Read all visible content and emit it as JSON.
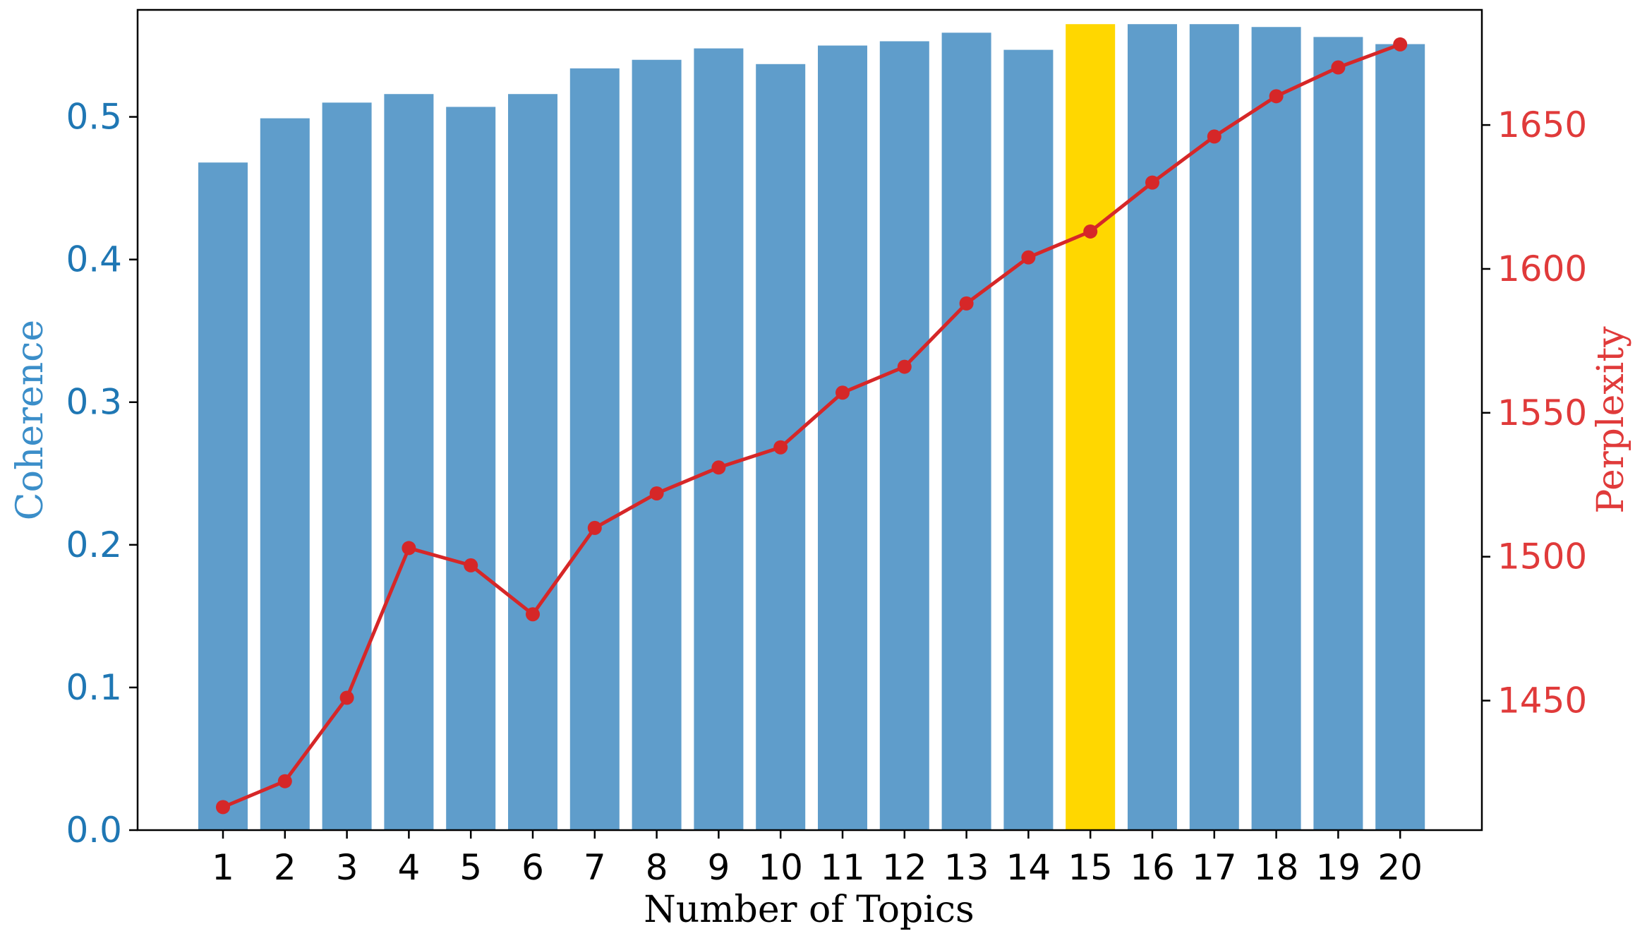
{
  "chart_data": {
    "type": "bar",
    "title": "",
    "xlabel": "Number of Topics",
    "categories": [
      "1",
      "2",
      "3",
      "4",
      "5",
      "6",
      "7",
      "8",
      "9",
      "10",
      "11",
      "12",
      "13",
      "14",
      "15",
      "16",
      "17",
      "18",
      "19",
      "20"
    ],
    "highlighted_category": "15",
    "series": [
      {
        "name": "Coherence",
        "type": "bar",
        "axis": "left",
        "values": [
          0.468,
          0.499,
          0.51,
          0.516,
          0.507,
          0.516,
          0.534,
          0.54,
          0.548,
          0.537,
          0.55,
          0.553,
          0.559,
          0.547,
          0.565,
          0.565,
          0.565,
          0.563,
          0.556,
          0.551
        ]
      },
      {
        "name": "Perplexity",
        "type": "line",
        "axis": "right",
        "values": [
          1413,
          1422,
          1451,
          1503,
          1497,
          1480,
          1510,
          1522,
          1531,
          1538,
          1557,
          1566,
          1588,
          1604,
          1613,
          1630,
          1646,
          1660,
          1670,
          1678
        ]
      }
    ],
    "y_left": {
      "label": "Coherence",
      "lim": [
        0,
        0.575
      ],
      "ticks": [
        0.0,
        0.1,
        0.2,
        0.3,
        0.4,
        0.5
      ],
      "tick_labels": [
        "0.0",
        "0.1",
        "0.2",
        "0.3",
        "0.4",
        "0.5"
      ]
    },
    "y_right": {
      "label": "Perplexity",
      "lim": [
        1405,
        1690
      ],
      "ticks": [
        1450,
        1500,
        1550,
        1600,
        1650
      ],
      "tick_labels": [
        "1450",
        "1500",
        "1550",
        "1600",
        "1650"
      ]
    },
    "grid": false,
    "legend": "none"
  },
  "colors": {
    "bar": "#5f9dcb",
    "bar_highlight": "#ffd700",
    "line": "#d62728",
    "left_axis_text": "#1f77b4",
    "left_axis_title": "#3b8ec9",
    "right_axis_text": "#e03a3a",
    "axis": "#000000",
    "text": "#000000"
  }
}
